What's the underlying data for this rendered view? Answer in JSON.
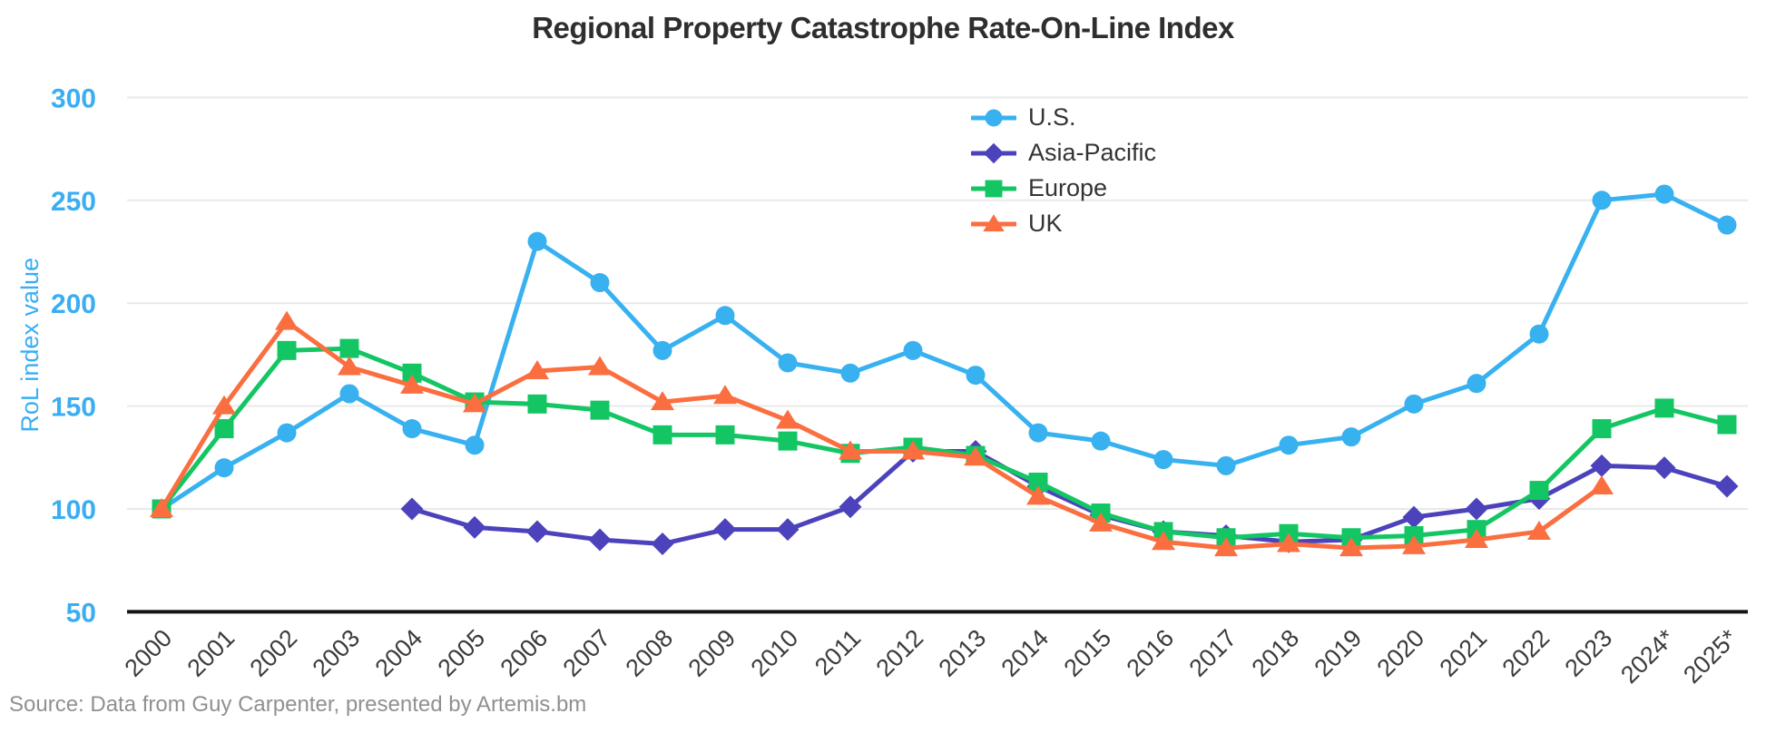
{
  "title": "Regional Property Catastrophe Rate-On-Line Index",
  "source_note": "Source: Data from Guy Carpenter, presented by Artemis.bm",
  "colors": {
    "background": "#ffffff",
    "title_text": "#2e2e2e",
    "y_tick_text": "#3aaef3",
    "x_tick_text": "#3b3b3b",
    "grid_line": "#e9e9e9",
    "axis_line": "#141414",
    "legend_text": "#343434",
    "source_text": "#909090"
  },
  "chart_data": {
    "type": "line",
    "title": "Regional Property Catastrophe Rate-On-Line Index",
    "xlabel": "",
    "ylabel": "RoL index value",
    "ylim": [
      50,
      300
    ],
    "yticks": [
      300,
      250,
      200,
      150,
      100,
      50
    ],
    "grid": "horizontal",
    "legend_position": "top-center",
    "categories": [
      "2000",
      "2001",
      "2002",
      "2003",
      "2004",
      "2005",
      "2006",
      "2007",
      "2008",
      "2009",
      "2010",
      "2011",
      "2012",
      "2013",
      "2014",
      "2015",
      "2016",
      "2017",
      "2018",
      "2019",
      "2020",
      "2021",
      "2022",
      "2023",
      "2024*",
      "2025*"
    ],
    "series": [
      {
        "name": "U.S.",
        "color": "#38b1f0",
        "marker": "circle",
        "values": [
          100,
          120,
          137,
          156,
          139,
          131,
          230,
          210,
          177,
          194,
          171,
          166,
          177,
          165,
          137,
          133,
          124,
          121,
          131,
          135,
          151,
          161,
          185,
          250,
          253,
          238
        ]
      },
      {
        "name": "Asia-Pacific",
        "color": "#4c43bc",
        "marker": "diamond",
        "values": [
          null,
          null,
          null,
          null,
          100,
          91,
          89,
          85,
          83,
          90,
          90,
          101,
          128,
          128,
          111,
          97,
          89,
          87,
          84,
          85,
          96,
          100,
          105,
          121,
          120,
          111
        ]
      },
      {
        "name": "Europe",
        "color": "#13c663",
        "marker": "square",
        "values": [
          100,
          139,
          177,
          178,
          166,
          152,
          151,
          148,
          136,
          136,
          133,
          127,
          130,
          126,
          113,
          98,
          89,
          86,
          88,
          86,
          87,
          90,
          109,
          139,
          149,
          141
        ]
      },
      {
        "name": "UK",
        "color": "#fa6e3f",
        "marker": "triangle",
        "values": [
          100,
          150,
          191,
          169,
          160,
          151,
          167,
          169,
          152,
          155,
          143,
          128,
          128,
          125,
          106,
          93,
          84,
          81,
          83,
          81,
          82,
          85,
          89,
          111,
          null,
          null
        ]
      }
    ]
  }
}
